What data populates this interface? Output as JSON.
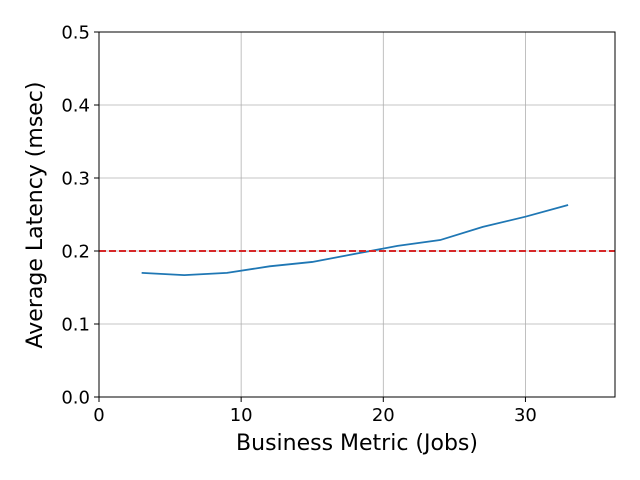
{
  "chart_data": {
    "type": "line",
    "x_label": "Business Metric (Jobs)",
    "y_label": "Average Latency (msec)",
    "x": [
      3,
      6,
      9,
      12,
      15,
      18,
      21,
      24,
      27,
      30,
      33
    ],
    "series": [
      {
        "color": "#1f77b4",
        "values": [
          0.17,
          0.167,
          0.17,
          0.179,
          0.185,
          0.196,
          0.207,
          0.215,
          0.233,
          0.247,
          0.263
        ]
      }
    ],
    "threshold": {
      "value": 0.2,
      "color": "#d62728"
    },
    "xlim": [
      0,
      36.3
    ],
    "xticks": [
      0,
      10,
      20,
      30
    ],
    "ylim": [
      0,
      0.5
    ],
    "yticks": [
      {
        "value": 0,
        "label": "0.0"
      },
      0.1,
      0.2,
      0.3,
      0.4,
      0.5
    ],
    "grid": true
  }
}
